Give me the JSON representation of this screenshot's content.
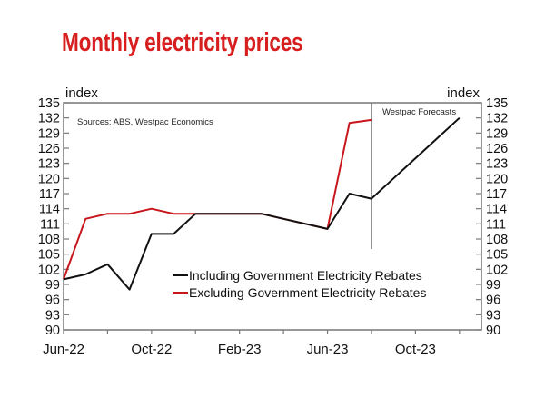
{
  "chart_data": {
    "type": "line",
    "title": "Monthly electricity prices",
    "ylabel_left": "index",
    "ylabel_right": "index",
    "source": "Sources: ABS, Westpac Economics",
    "annotation": "Westpac Forecasts",
    "forecast_start": "Aug-23",
    "ylim": [
      90,
      135
    ],
    "yticks": [
      90,
      93,
      96,
      99,
      102,
      105,
      108,
      111,
      114,
      117,
      120,
      123,
      126,
      129,
      132,
      135
    ],
    "x": [
      "Jun-22",
      "Jul-22",
      "Aug-22",
      "Sep-22",
      "Oct-22",
      "Nov-22",
      "Dec-22",
      "Jan-23",
      "Feb-23",
      "Mar-23",
      "Apr-23",
      "May-23",
      "Jun-23",
      "Jul-23",
      "Aug-23",
      "Sep-23",
      "Oct-23",
      "Nov-23",
      "Dec-23"
    ],
    "xtick_labels": [
      "Jun-22",
      "Oct-22",
      "Feb-23",
      "Jun-23",
      "Oct-23"
    ],
    "series": [
      {
        "name": "Including Government Electricity Rebates",
        "color": "#111111",
        "values": [
          100,
          101,
          103,
          98,
          109,
          109,
          113,
          113,
          113,
          113,
          112,
          111,
          110,
          117,
          116,
          120,
          124,
          128,
          132
        ]
      },
      {
        "name": "Excluding Government Electricity Rebates",
        "color": "#c8161d",
        "values": [
          100,
          112,
          113,
          113,
          114,
          113,
          113,
          113,
          113,
          113,
          112,
          111,
          110,
          131,
          131.6,
          null,
          null,
          null,
          null
        ]
      }
    ],
    "legend_position": "bottom-center",
    "grid": false
  }
}
